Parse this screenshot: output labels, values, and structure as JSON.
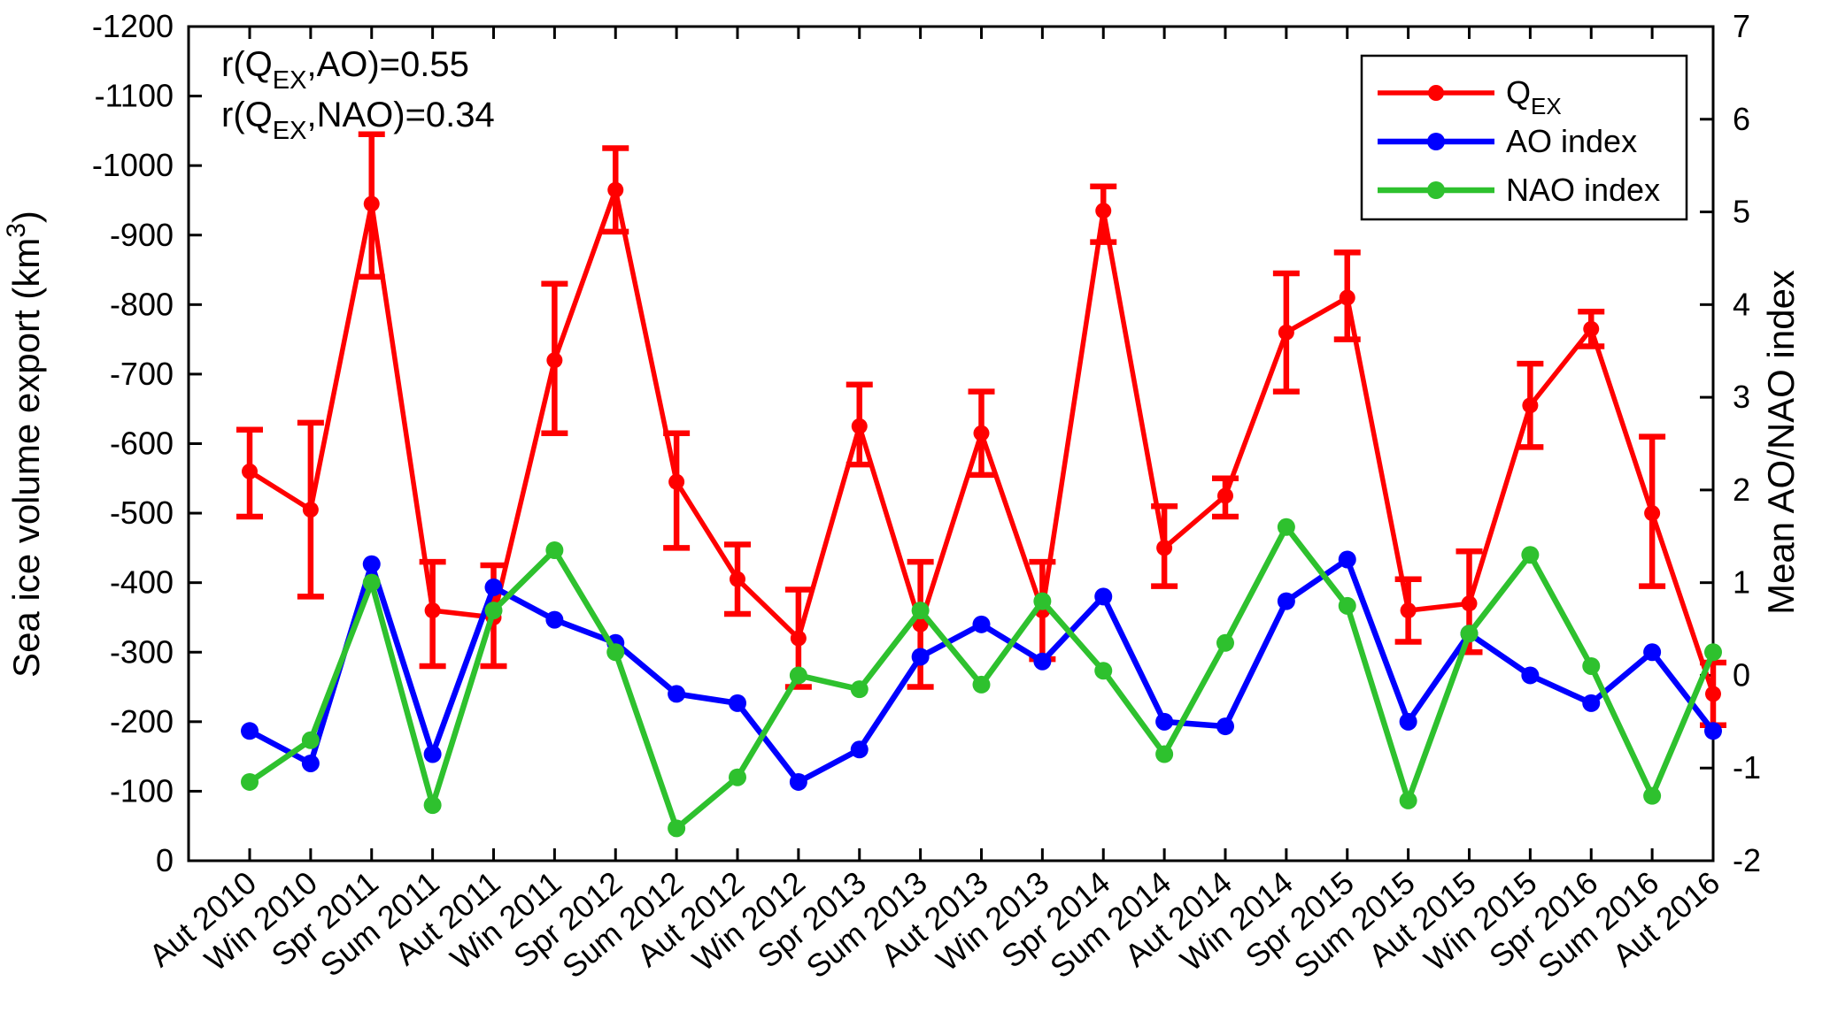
{
  "figure": {
    "background": "#ffffff",
    "frame_color": "#000000"
  },
  "chart_data": {
    "type": "line",
    "title": "",
    "grid": false,
    "categories": [
      "Aut 2010",
      "Win 2010",
      "Spr 2011",
      "Sum 2011",
      "Aut 2011",
      "Win 2011",
      "Spr 2012",
      "Sum 2012",
      "Aut 2012",
      "Win 2012",
      "Spr 2013",
      "Sum 2013",
      "Aut 2013",
      "Win 2013",
      "Spr 2014",
      "Sum 2014",
      "Aut 2014",
      "Win 2014",
      "Spr 2015",
      "Sum 2015",
      "Aut 2015",
      "Win 2015",
      "Spr 2016",
      "Sum 2016",
      "Aut 2016"
    ],
    "series": [
      {
        "id": "qex",
        "label_pre": "Q",
        "label_sub": "EX",
        "axis": "left",
        "color": "#FF0000",
        "values": [
          -560,
          -505,
          -945,
          -360,
          -350,
          -720,
          -965,
          -545,
          -405,
          -320,
          -625,
          -340,
          -615,
          -360,
          -935,
          -450,
          -525,
          -760,
          -810,
          -360,
          -370,
          -655,
          -765,
          -500,
          -240
        ],
        "err_upper": [
          -620,
          -630,
          -1045,
          -430,
          -425,
          -830,
          -1025,
          -615,
          -455,
          -390,
          -685,
          -430,
          -675,
          -430,
          -970,
          -510,
          -550,
          -845,
          -875,
          -405,
          -445,
          -715,
          -790,
          -610,
          -285
        ],
        "err_lower": [
          -495,
          -380,
          -840,
          -280,
          -280,
          -615,
          -905,
          -450,
          -355,
          -250,
          -570,
          -250,
          -555,
          -290,
          -890,
          -395,
          -495,
          -675,
          -750,
          -315,
          -300,
          -595,
          -740,
          -395,
          -195
        ]
      },
      {
        "id": "ao",
        "label": "AO index",
        "axis": "right",
        "color": "#0000FF",
        "values": [
          -0.6,
          -0.95,
          1.2,
          -0.85,
          0.95,
          0.6,
          0.35,
          -0.2,
          -0.3,
          -1.15,
          -0.8,
          0.2,
          0.55,
          0.15,
          0.85,
          -0.5,
          -0.55,
          0.8,
          1.25,
          -0.5,
          0.45,
          0.0,
          -0.3,
          0.25,
          -0.6
        ]
      },
      {
        "id": "nao",
        "label": "NAO index",
        "axis": "right",
        "color": "#2EC12E",
        "values": [
          -1.15,
          -0.7,
          1.0,
          -1.4,
          0.7,
          1.35,
          0.25,
          -1.65,
          -1.1,
          0.0,
          -0.15,
          0.7,
          -0.1,
          0.8,
          0.05,
          -0.85,
          0.35,
          1.6,
          0.75,
          -1.35,
          0.45,
          1.3,
          0.1,
          -1.3,
          0.25
        ]
      }
    ],
    "left_axis": {
      "label_pre": "Sea ice volume export (km",
      "label_sup": "3",
      "label_post": ")",
      "min": -1200,
      "max": 0,
      "min_at_top": true,
      "ticks": [
        -1200,
        -1100,
        -1000,
        -900,
        -800,
        -700,
        -600,
        -500,
        -400,
        -300,
        -200,
        -100,
        0
      ]
    },
    "right_axis": {
      "label": "Mean AO/NAO index",
      "min": -2,
      "max": 7,
      "max_at_top": true,
      "ticks": [
        7,
        6,
        5,
        4,
        3,
        2,
        1,
        0,
        -1,
        -2
      ]
    },
    "annotations": [
      {
        "id": "corr-ao",
        "pre": "r(Q",
        "sub": "EX",
        "post": ",AO)=0.55",
        "color": "#0000FF"
      },
      {
        "id": "corr-nao",
        "pre": "r(Q",
        "sub": "EX",
        "post": ",NAO)=0.34",
        "color": "#2EC12E"
      }
    ],
    "legend": {
      "position": "top-right",
      "entries": [
        {
          "series": "qex",
          "label_pre": "Q",
          "label_sub": "EX"
        },
        {
          "series": "ao",
          "label": "AO index"
        },
        {
          "series": "nao",
          "label": "NAO index"
        }
      ]
    }
  }
}
